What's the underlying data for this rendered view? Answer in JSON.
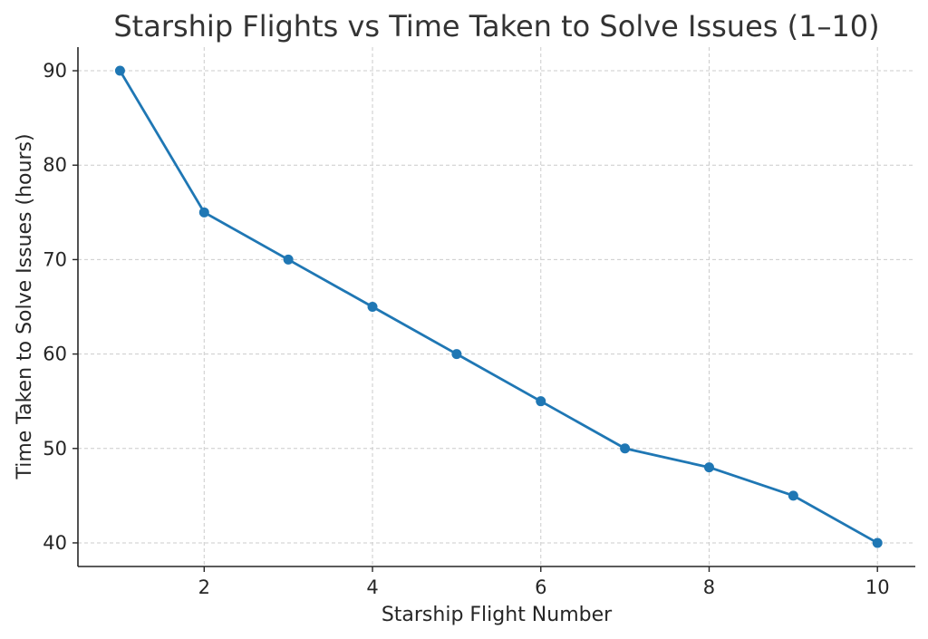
{
  "chart_data": {
    "type": "line",
    "title": "Starship Flights vs Time Taken to Solve Issues (1–10)",
    "xlabel": "Starship Flight Number",
    "ylabel": "Time Taken to Solve Issues (hours)",
    "x": [
      1,
      2,
      3,
      4,
      5,
      6,
      7,
      8,
      9,
      10
    ],
    "series": [
      {
        "values": [
          90,
          75,
          70,
          65,
          60,
          55,
          50,
          48,
          45,
          40
        ],
        "color": "#1f77b4"
      }
    ],
    "xlim": [
      0.5,
      10.45
    ],
    "ylim": [
      37.5,
      92.5
    ],
    "xticks": [
      2,
      4,
      6,
      8,
      10
    ],
    "yticks": [
      40,
      50,
      60,
      70,
      80,
      90
    ],
    "grid": true,
    "grid_style": "dashed",
    "markers": true,
    "legend": "none"
  }
}
